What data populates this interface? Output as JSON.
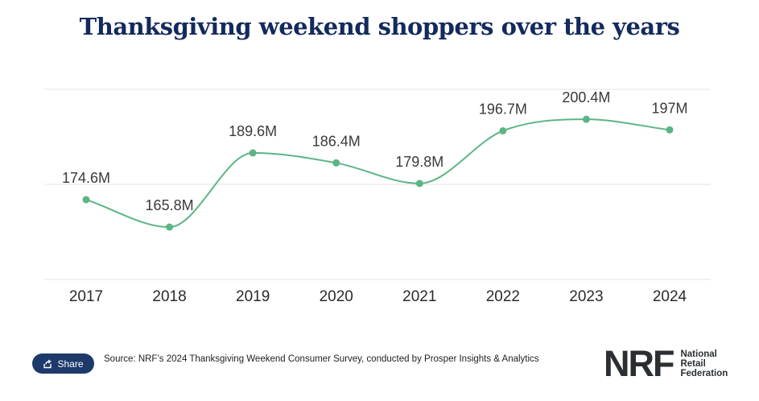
{
  "title": "Thanksgiving weekend shoppers over the years",
  "share_label": "Share",
  "source": "Source: NRF’s 2024 Thanksgiving Weekend Consumer Survey, conducted by Prosper Insights & Analytics",
  "logo": {
    "mark": "NRF",
    "lines": [
      "National",
      "Retail",
      "Federation"
    ]
  },
  "colors": {
    "line": "#5cb584",
    "title": "#132a5c",
    "grid": "#e3e3e3",
    "share_button": "#1d3a6b"
  },
  "chart_data": {
    "type": "line",
    "categories": [
      "2017",
      "2018",
      "2019",
      "2020",
      "2021",
      "2022",
      "2023",
      "2024"
    ],
    "values": [
      174.6,
      165.8,
      189.6,
      186.4,
      179.8,
      196.7,
      200.4,
      197
    ],
    "labels": [
      "174.6M",
      "165.8M",
      "189.6M",
      "186.4M",
      "179.8M",
      "196.7M",
      "200.4M",
      "197M"
    ],
    "unit": "M",
    "ylim": [
      149,
      210
    ],
    "grid": true,
    "legend": "none"
  }
}
